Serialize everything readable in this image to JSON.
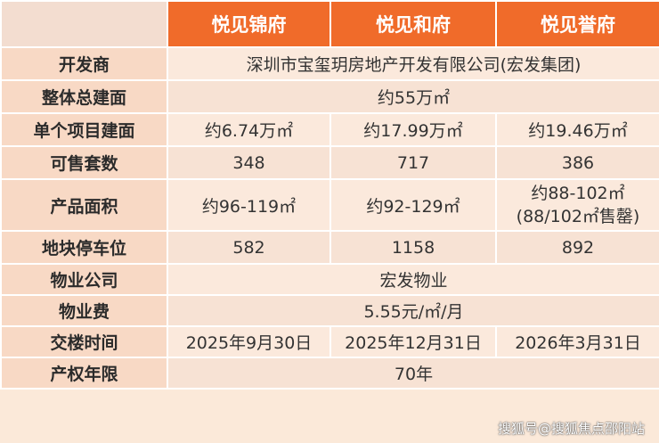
{
  "headers": [
    "",
    "悦见锦府",
    "悦见和府",
    "悦见誉府"
  ],
  "rows": {
    "developer": {
      "label": "开发商",
      "value": "深圳市宝玺玥房地产开发有限公司(宏发集团)"
    },
    "total_area": {
      "label": "整体总建面",
      "value": "约55万㎡"
    },
    "project_area": {
      "label": "单个项目建面",
      "values": [
        "约6.74万㎡",
        "约17.99万㎡",
        "约19.46万㎡"
      ]
    },
    "units": {
      "label": "可售套数",
      "values": [
        "348",
        "717",
        "386"
      ]
    },
    "product_area": {
      "label": "产品面积",
      "values": [
        "约96-119㎡",
        "约92-129㎡"
      ],
      "value3_line1": "约88-102㎡",
      "value3_line2": "(88/102㎡售罄)"
    },
    "parking": {
      "label": "地块停车位",
      "values": [
        "582",
        "1158",
        "892"
      ]
    },
    "property_company": {
      "label": "物业公司",
      "value": "宏发物业"
    },
    "property_fee": {
      "label": "物业费",
      "value": "5.55元/㎡/月"
    },
    "delivery": {
      "label": "交楼时间",
      "values": [
        "2025年9月30日",
        "2025年12月31日",
        "2026年3月31日"
      ]
    },
    "tenure": {
      "label": "产权年限",
      "value": "70年"
    }
  },
  "watermark": "搜狐号@搜狐焦点邵阳站"
}
